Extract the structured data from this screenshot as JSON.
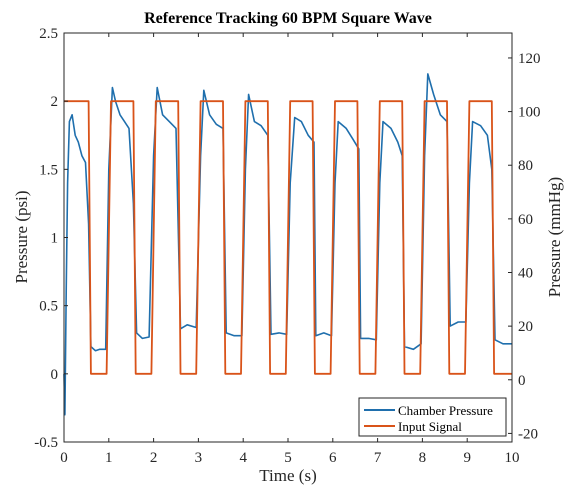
{
  "chart_data": {
    "type": "line",
    "title": "Reference Tracking 60 BPM Square Wave",
    "xlabel": "Time (s)",
    "ylabel": "Pressure (psi)",
    "ylabel_right": "Pressure (mmHg)",
    "xlim": [
      0,
      10
    ],
    "ylim": [
      -0.5,
      2.5
    ],
    "ylim_right": [
      -23.2,
      129.3
    ],
    "xticks": [
      "0",
      "1",
      "2",
      "3",
      "4",
      "5",
      "6",
      "7",
      "8",
      "9",
      "10"
    ],
    "yticks": [
      "-0.5",
      "0",
      "0.5",
      "1",
      "1.5",
      "2",
      "2.5"
    ],
    "yticks_right": [
      "-20",
      "0",
      "20",
      "40",
      "60",
      "80",
      "100",
      "120"
    ],
    "grid": false,
    "legend_position": "bottom-right",
    "series": [
      {
        "name": "Chamber Pressure",
        "color": "#1f6fad",
        "points": [
          [
            0.0,
            0.0
          ],
          [
            0.02,
            -0.3
          ],
          [
            0.05,
            0.6
          ],
          [
            0.08,
            1.4
          ],
          [
            0.12,
            1.85
          ],
          [
            0.18,
            1.9
          ],
          [
            0.25,
            1.75
          ],
          [
            0.32,
            1.7
          ],
          [
            0.4,
            1.6
          ],
          [
            0.48,
            1.55
          ],
          [
            0.55,
            1.1
          ],
          [
            0.6,
            0.2
          ],
          [
            0.7,
            0.17
          ],
          [
            0.8,
            0.18
          ],
          [
            0.93,
            0.18
          ],
          [
            1.0,
            1.5
          ],
          [
            1.08,
            2.1
          ],
          [
            1.15,
            2.0
          ],
          [
            1.25,
            1.9
          ],
          [
            1.35,
            1.85
          ],
          [
            1.45,
            1.8
          ],
          [
            1.55,
            1.25
          ],
          [
            1.62,
            0.3
          ],
          [
            1.75,
            0.26
          ],
          [
            1.9,
            0.27
          ],
          [
            2.0,
            1.6
          ],
          [
            2.08,
            2.1
          ],
          [
            2.2,
            1.9
          ],
          [
            2.35,
            1.85
          ],
          [
            2.5,
            1.8
          ],
          [
            2.6,
            0.33
          ],
          [
            2.75,
            0.36
          ],
          [
            2.95,
            0.34
          ],
          [
            3.05,
            1.6
          ],
          [
            3.12,
            2.08
          ],
          [
            3.25,
            1.9
          ],
          [
            3.4,
            1.83
          ],
          [
            3.55,
            1.8
          ],
          [
            3.62,
            0.3
          ],
          [
            3.8,
            0.28
          ],
          [
            3.97,
            0.28
          ],
          [
            4.05,
            1.5
          ],
          [
            4.12,
            2.05
          ],
          [
            4.25,
            1.85
          ],
          [
            4.4,
            1.82
          ],
          [
            4.55,
            1.75
          ],
          [
            4.62,
            0.29
          ],
          [
            4.8,
            0.3
          ],
          [
            4.97,
            0.29
          ],
          [
            5.05,
            1.4
          ],
          [
            5.15,
            1.88
          ],
          [
            5.3,
            1.85
          ],
          [
            5.45,
            1.75
          ],
          [
            5.58,
            1.7
          ],
          [
            5.62,
            0.28
          ],
          [
            5.8,
            0.3
          ],
          [
            5.97,
            0.28
          ],
          [
            6.05,
            1.4
          ],
          [
            6.12,
            1.85
          ],
          [
            6.3,
            1.8
          ],
          [
            6.45,
            1.72
          ],
          [
            6.58,
            1.65
          ],
          [
            6.62,
            0.26
          ],
          [
            6.8,
            0.26
          ],
          [
            6.97,
            0.25
          ],
          [
            7.05,
            1.4
          ],
          [
            7.12,
            1.85
          ],
          [
            7.3,
            1.8
          ],
          [
            7.45,
            1.7
          ],
          [
            7.55,
            1.6
          ],
          [
            7.6,
            0.2
          ],
          [
            7.8,
            0.18
          ],
          [
            7.97,
            0.22
          ],
          [
            8.05,
            1.6
          ],
          [
            8.12,
            2.2
          ],
          [
            8.25,
            2.05
          ],
          [
            8.4,
            1.9
          ],
          [
            8.55,
            1.85
          ],
          [
            8.62,
            0.35
          ],
          [
            8.8,
            0.38
          ],
          [
            8.97,
            0.38
          ],
          [
            9.05,
            1.4
          ],
          [
            9.12,
            1.85
          ],
          [
            9.3,
            1.82
          ],
          [
            9.45,
            1.75
          ],
          [
            9.55,
            1.5
          ],
          [
            9.62,
            0.25
          ],
          [
            9.8,
            0.22
          ],
          [
            10.0,
            0.22
          ]
        ]
      },
      {
        "name": "Input Signal",
        "color": "#d95319",
        "points": [
          [
            0.0,
            2.0
          ],
          [
            0.55,
            2.0
          ],
          [
            0.6,
            0.0
          ],
          [
            0.95,
            0.0
          ],
          [
            1.05,
            2.0
          ],
          [
            1.55,
            2.0
          ],
          [
            1.6,
            0.0
          ],
          [
            1.95,
            0.0
          ],
          [
            2.05,
            2.0
          ],
          [
            2.55,
            2.0
          ],
          [
            2.6,
            0.0
          ],
          [
            2.95,
            0.0
          ],
          [
            3.05,
            2.0
          ],
          [
            3.55,
            2.0
          ],
          [
            3.6,
            0.0
          ],
          [
            3.95,
            0.0
          ],
          [
            4.05,
            2.0
          ],
          [
            4.55,
            2.0
          ],
          [
            4.6,
            0.0
          ],
          [
            4.95,
            0.0
          ],
          [
            5.05,
            2.0
          ],
          [
            5.55,
            2.0
          ],
          [
            5.6,
            0.0
          ],
          [
            5.95,
            0.0
          ],
          [
            6.05,
            2.0
          ],
          [
            6.55,
            2.0
          ],
          [
            6.6,
            0.0
          ],
          [
            6.95,
            0.0
          ],
          [
            7.05,
            2.0
          ],
          [
            7.55,
            2.0
          ],
          [
            7.6,
            0.0
          ],
          [
            7.95,
            0.0
          ],
          [
            8.05,
            2.0
          ],
          [
            8.55,
            2.0
          ],
          [
            8.6,
            0.0
          ],
          [
            8.95,
            0.0
          ],
          [
            9.05,
            2.0
          ],
          [
            9.55,
            2.0
          ],
          [
            9.6,
            0.0
          ],
          [
            10.0,
            0.0
          ]
        ]
      }
    ]
  }
}
